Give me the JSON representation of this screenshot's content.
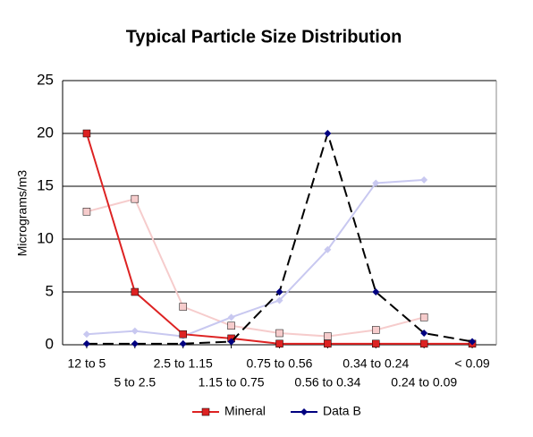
{
  "chart_data": {
    "type": "line",
    "title": "Typical Particle Size Distribution",
    "y_label": "Micrograms/m3",
    "categories": [
      "12 to 5",
      "5 to 2.5",
      "2.5 to 1.15",
      "1.15 to 0.75",
      "0.75 to 0.56",
      "0.56 to 0.34",
      "0.34 to 0.24",
      "0.24 to 0.09",
      "< 0.09"
    ],
    "series": [
      {
        "color": "#f6cccc",
        "marker": "square",
        "values": [
          12.6,
          13.8,
          3.6,
          1.8,
          1.1,
          0.8,
          1.4,
          2.6,
          null
        ]
      },
      {
        "color": "#c8c8f0",
        "marker": "diamond",
        "values": [
          1.0,
          1.3,
          0.8,
          2.6,
          4.2,
          9,
          15.3,
          15.6,
          null
        ]
      },
      {
        "name": "Mineral",
        "color": "#dd2222",
        "marker": "square",
        "values": [
          20,
          5,
          1,
          0.6,
          0.1,
          0.1,
          0.1,
          0.1,
          0.1
        ]
      },
      {
        "name": "Data B",
        "color": "#000000",
        "marker_color": "#000080",
        "marker": "diamond",
        "dash": true,
        "values": [
          0.1,
          0.1,
          0.1,
          0.3,
          5,
          20,
          5,
          1.1,
          0.3
        ]
      }
    ],
    "ylim": [
      0,
      25
    ],
    "yticks": [
      0,
      5,
      10,
      15,
      20,
      25
    ],
    "grid": true,
    "legend": "bottom"
  }
}
